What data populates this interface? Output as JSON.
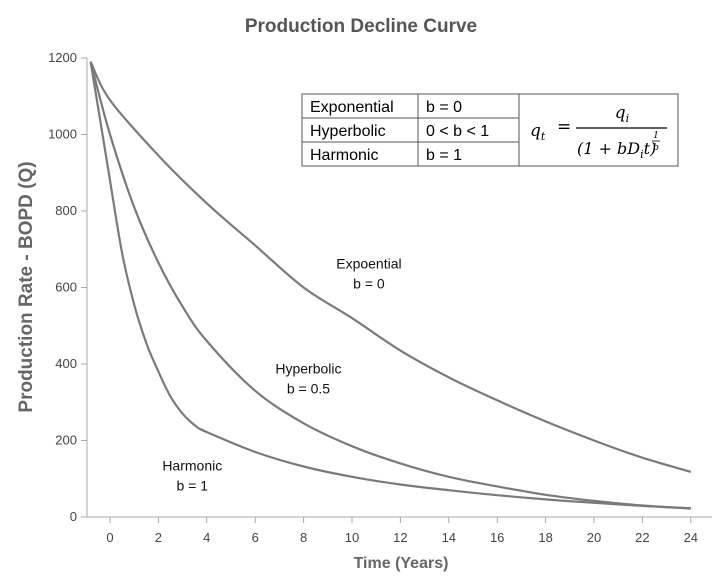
{
  "chart_data": {
    "type": "line",
    "title": "Production Decline Curve",
    "xlabel": "Time (Years)",
    "ylabel": "Production Rate - BOPD (Q)",
    "xlim": [
      -1,
      25
    ],
    "ylim": [
      0,
      1200
    ],
    "x_ticks": [
      "0",
      "2",
      "4",
      "6",
      "8",
      "10",
      "12",
      "14",
      "16",
      "18",
      "20",
      "22",
      "24"
    ],
    "y_ticks": [
      "0",
      "200",
      "400",
      "600",
      "800",
      "1000",
      "1200"
    ],
    "grid": false,
    "series": [
      {
        "name": "Expoential b = 0",
        "x": [
          -0.8,
          0,
          2,
          4,
          6,
          8,
          10,
          12,
          14,
          16,
          18,
          20,
          22,
          24
        ],
        "y": [
          1190,
          1090,
          945,
          820,
          710,
          600,
          520,
          435,
          365,
          305,
          250,
          200,
          155,
          118
        ]
      },
      {
        "name": "Hyperbolic b = 0.5",
        "x": [
          -0.8,
          0,
          1,
          2,
          3,
          4,
          6,
          8,
          10,
          12,
          14,
          16,
          18,
          20,
          22,
          24
        ],
        "y": [
          1190,
          1000,
          810,
          665,
          550,
          460,
          330,
          245,
          185,
          140,
          105,
          80,
          58,
          42,
          30,
          22
        ]
      },
      {
        "name": "Harmonic b = 1",
        "x": [
          -0.8,
          0,
          0.5,
          1,
          1.5,
          2,
          2.5,
          3,
          3.5,
          4,
          6,
          8,
          10,
          12,
          14,
          16,
          18,
          20,
          22,
          24
        ],
        "y": [
          1190,
          880,
          690,
          555,
          455,
          380,
          315,
          270,
          240,
          222,
          170,
          132,
          105,
          85,
          70,
          57,
          46,
          37,
          29,
          23
        ]
      }
    ],
    "annotations": [
      {
        "line1": "Expoential",
        "line2": "b = 0",
        "x": 10.7,
        "y": 650
      },
      {
        "line1": "Hyperbolic",
        "line2": "b = 0.5",
        "x": 8.2,
        "y": 375
      },
      {
        "line1": "Harmonic",
        "line2": "b = 1",
        "x": 3.4,
        "y": 122
      }
    ],
    "legend_table": {
      "placement": "top-right",
      "rows": [
        {
          "name": "Exponential",
          "cond": "b = 0"
        },
        {
          "name": "Hyperbolic",
          "cond": "0 < b < 1"
        },
        {
          "name": "Harmonic",
          "cond": "b = 1"
        }
      ],
      "formula": {
        "lhs": "qt",
        "equals": "=",
        "numerator": "qi",
        "denominator": "(1 + bDit)",
        "exponent_num": "1",
        "exponent_den": "b"
      }
    }
  }
}
